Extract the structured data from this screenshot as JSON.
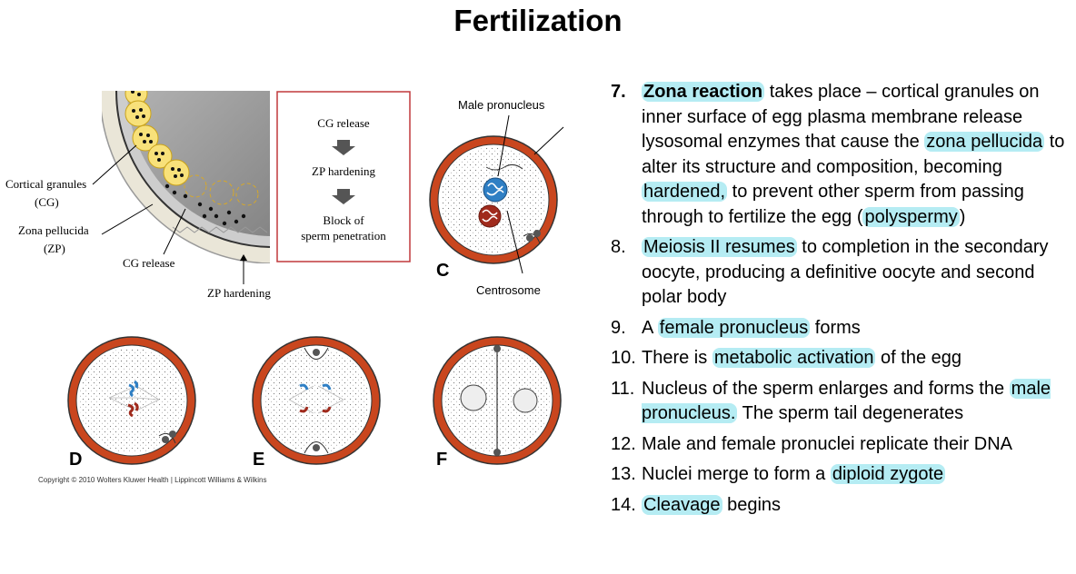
{
  "title": "Fertilization",
  "figure": {
    "box_steps": [
      "CG release",
      "ZP hardening",
      "Block of",
      "sperm penetration"
    ],
    "labels": {
      "cortical_granules": "Cortical granules",
      "cg": "(CG)",
      "zona_pellucida": "Zona pellucida",
      "zp": "(ZP)",
      "cg_release": "CG release",
      "zp_hardening": "ZP hardening",
      "male_pronucleus": "Male pronucleus",
      "centrosome": "Centrosome"
    },
    "panel_letters": [
      "C",
      "D",
      "E",
      "F"
    ],
    "copyright": "Copyright © 2010 Wolters Kluwer Health | Lippincott Williams & Wilkins"
  },
  "steps": [
    {
      "n": "7.",
      "hl1": "Zona reaction",
      "t1": " takes place – cortical granules on inner surface of egg plasma membrane release lysosomal enzymes that cause the ",
      "hl2": "zona pellucida",
      "t2": " to alter its structure and composition, becoming ",
      "hl3": "hardened,",
      "t3": " to prevent other sperm from passing through to fertilize the egg (",
      "hl4": "polyspermy",
      "t4": ")"
    },
    {
      "n": "8.",
      "hl1": "Meiosis II resumes",
      "t1": " to completion in the secondary oocyte, producing a definitive oocyte and second polar body"
    },
    {
      "n": "9.",
      "t0": "A ",
      "hl1": "female pronucleus",
      "t1": " forms"
    },
    {
      "n": "10.",
      "t0": "There is ",
      "hl1": "metabolic activation",
      "t1": " of the egg"
    },
    {
      "n": "11.",
      "t0": "Nucleus of the sperm enlarges and forms the ",
      "hl1": "male pronucleus.",
      "t1": " The sperm tail degenerates"
    },
    {
      "n": "12.",
      "t0": "Male and female pronuclei replicate their DNA"
    },
    {
      "n": "13.",
      "t0": "Nuclei merge to form a ",
      "hl1": "diploid zygote"
    },
    {
      "n": "14.",
      "hl1": "Cleavage",
      "t1": " begins"
    }
  ]
}
